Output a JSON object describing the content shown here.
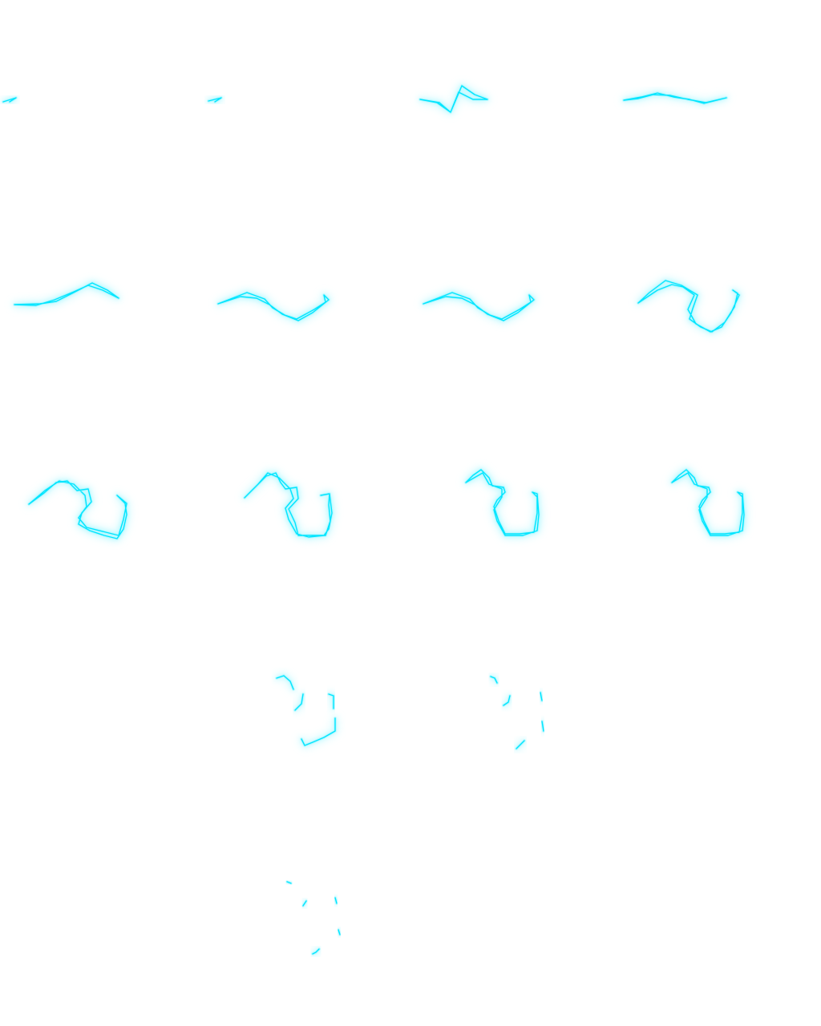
{
  "sprite_sheet": {
    "columns": 4,
    "rows": 5,
    "frame_count": 18,
    "colors": {
      "background": "#ffffff",
      "bolt": "#00e5ff",
      "glow": "#7ff4ff"
    },
    "frames": [
      {
        "index": 1,
        "icon": "lightning-spark-icon"
      },
      {
        "index": 2,
        "icon": "lightning-spark-icon"
      },
      {
        "index": 3,
        "icon": "lightning-bolt-icon"
      },
      {
        "index": 4,
        "icon": "lightning-bolt-icon"
      },
      {
        "index": 5,
        "icon": "lightning-bolt-icon"
      },
      {
        "index": 6,
        "icon": "lightning-bolt-icon"
      },
      {
        "index": 7,
        "icon": "lightning-bolt-icon"
      },
      {
        "index": 8,
        "icon": "lightning-bolt-icon"
      },
      {
        "index": 9,
        "icon": "lightning-bolt-icon"
      },
      {
        "index": 10,
        "icon": "lightning-bolt-icon"
      },
      {
        "index": 11,
        "icon": "lightning-bolt-icon"
      },
      {
        "index": 12,
        "icon": "lightning-bolt-icon"
      },
      {
        "index": 13,
        "icon": "lightning-fade-icon"
      },
      {
        "index": 14,
        "icon": "lightning-fade-icon"
      },
      {
        "index": 15,
        "icon": "lightning-fade-icon"
      },
      {
        "index": 16,
        "icon": "empty-frame"
      },
      {
        "index": 17,
        "icon": "empty-frame"
      },
      {
        "index": 18,
        "icon": "empty-frame"
      }
    ]
  }
}
